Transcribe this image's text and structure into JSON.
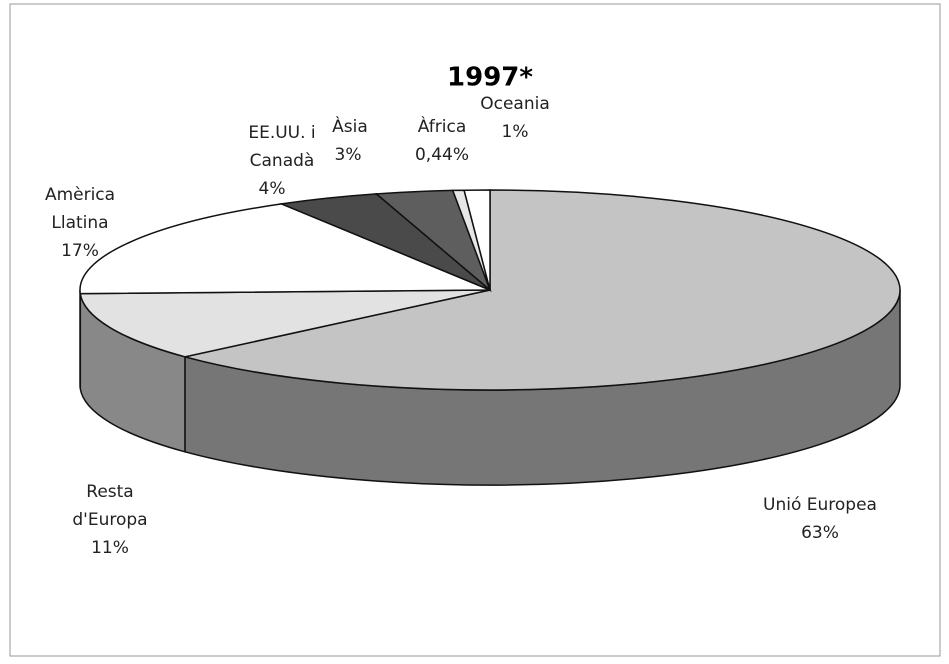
{
  "chart_data": {
    "type": "pie3d",
    "title": "1997*",
    "categories": [
      "Unió Europea",
      "Resta d'Europa",
      "Amèrica Llatina",
      "EE.UU. i Canadà",
      "Àsia",
      "Àfrica",
      "Oceania"
    ],
    "values": [
      63,
      11,
      17,
      4,
      3,
      0.44,
      1
    ],
    "value_labels": [
      "63%",
      "11%",
      "17%",
      "4%",
      "3%",
      "0,44%",
      "1%"
    ],
    "colors": [
      "#c4c4c4",
      "#e2e2e2",
      "#ffffff",
      "#4a4a4a",
      "#5e5e5e",
      "#e6e6e6",
      "#ffffff"
    ],
    "start_angle": 0,
    "direction": "clockwise"
  }
}
